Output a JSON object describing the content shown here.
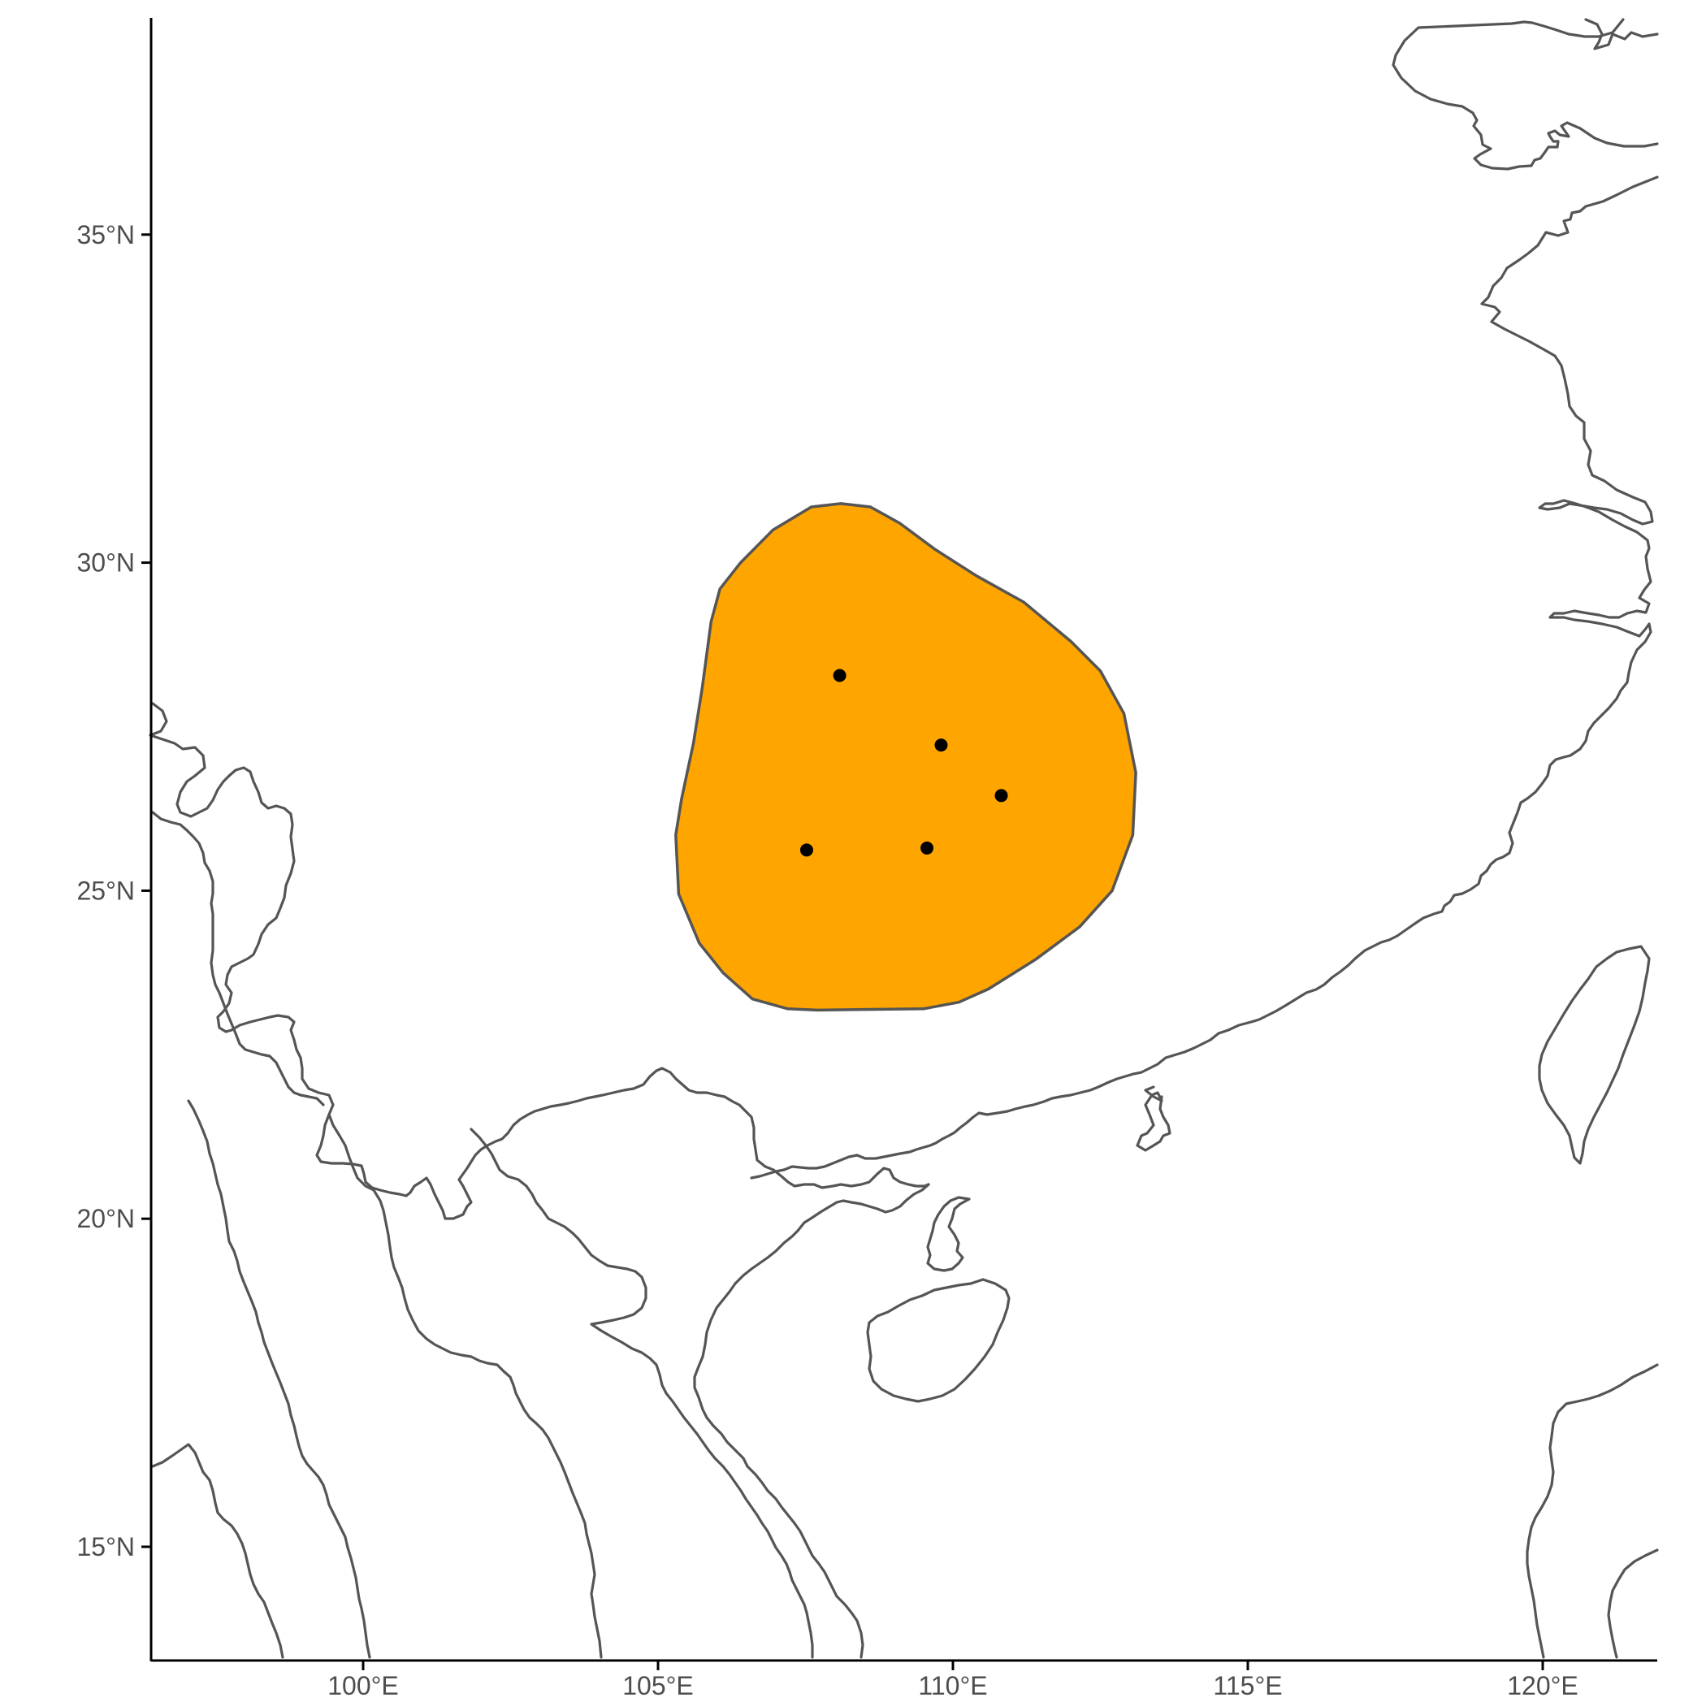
{
  "map": {
    "extent": {
      "lon": [
        96.4,
        121.9
      ],
      "lat": [
        14.5,
        39.4
      ]
    },
    "x_axis": {
      "ticks": [
        100,
        105,
        110,
        115,
        120
      ],
      "labels": [
        "100°E",
        "105°E",
        "110°E",
        "115°E",
        "120°E"
      ]
    },
    "y_axis": {
      "ticks": [
        15,
        20,
        25,
        30,
        35
      ],
      "labels": [
        "15°N",
        "20°N",
        "25°N",
        "30°N",
        "35°N"
      ]
    },
    "range_fill_color": "#FFA500",
    "outline_color": "#555555",
    "point_color": "#000000",
    "range_polygon": [
      [
        107.6,
        30.85
      ],
      [
        108.1,
        30.9
      ],
      [
        108.6,
        30.85
      ],
      [
        109.1,
        30.6
      ],
      [
        109.7,
        30.2
      ],
      [
        110.4,
        29.8
      ],
      [
        111.2,
        29.4
      ],
      [
        112.0,
        28.8
      ],
      [
        112.5,
        28.35
      ],
      [
        112.9,
        27.7
      ],
      [
        113.1,
        26.8
      ],
      [
        113.05,
        25.85
      ],
      [
        112.7,
        25.0
      ],
      [
        112.15,
        24.45
      ],
      [
        111.4,
        23.95
      ],
      [
        110.6,
        23.5
      ],
      [
        110.1,
        23.3
      ],
      [
        109.5,
        23.2
      ],
      [
        108.5,
        23.19
      ],
      [
        107.7,
        23.18
      ],
      [
        107.2,
        23.2
      ],
      [
        106.6,
        23.35
      ],
      [
        106.1,
        23.75
      ],
      [
        105.7,
        24.2
      ],
      [
        105.35,
        24.95
      ],
      [
        105.3,
        25.85
      ],
      [
        105.4,
        26.4
      ],
      [
        105.6,
        27.25
      ],
      [
        105.75,
        28.1
      ],
      [
        105.9,
        29.1
      ],
      [
        106.05,
        29.6
      ],
      [
        106.4,
        30.0
      ],
      [
        106.95,
        30.5
      ],
      [
        107.6,
        30.85
      ]
    ],
    "occurrence_points": [
      {
        "lon": 108.08,
        "lat": 28.28
      },
      {
        "lon": 109.8,
        "lat": 27.22
      },
      {
        "lon": 110.82,
        "lat": 26.45
      },
      {
        "lon": 107.52,
        "lat": 25.62
      },
      {
        "lon": 109.56,
        "lat": 25.65
      }
    ]
  }
}
